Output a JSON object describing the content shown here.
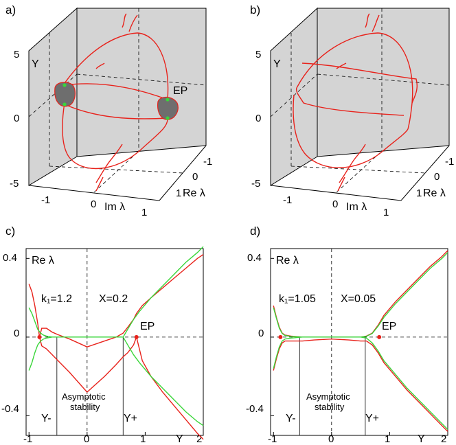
{
  "figure": {
    "panels": [
      {
        "letter": "a)",
        "type": "3d",
        "y_axis_label": "Y",
        "y_ticks": [
          "5",
          "0",
          "-5"
        ],
        "im_axis_label": "Im λ",
        "im_ticks": [
          "-1",
          "0",
          "1"
        ],
        "re_axis_label": "Re λ",
        "re_ticks": [
          "-1",
          "0",
          "1"
        ],
        "annotation": "EP"
      },
      {
        "letter": "b)",
        "type": "3d",
        "y_axis_label": "Y",
        "y_ticks": [
          "5",
          "0",
          "-5"
        ],
        "im_axis_label": "Im λ",
        "im_ticks": [
          "-1",
          "0",
          "1"
        ],
        "re_axis_label": "Re λ",
        "re_ticks": [
          "-1",
          "0",
          "1"
        ]
      }
    ]
  },
  "chart_data": [
    {
      "panel": "c)",
      "type": "line",
      "ylabel": "Re λ",
      "xlabel": "Y",
      "xlim": [
        -1.05,
        2.0
      ],
      "ylim": [
        -0.5,
        0.45
      ],
      "xticks": [
        "-1",
        "0",
        "1",
        "2"
      ],
      "yticks": [
        "0.4",
        "0",
        "-0.4"
      ],
      "params": {
        "k1": "k₁=1.2",
        "X": "X=0.2"
      },
      "ep_label": "EP",
      "ep_points": [
        [
          -0.82,
          0.0
        ],
        [
          0.85,
          0.0
        ]
      ],
      "stability_label": [
        "Asymptotic",
        "stability"
      ],
      "y_minus_label": "Y-",
      "y_plus_label": "Y+",
      "y_minus": -0.52,
      "y_plus": 0.62,
      "series": [
        {
          "name": "upper-red",
          "color": "#e8221b",
          "x": [
            -0.82,
            -0.78,
            -0.7,
            -0.6,
            -0.5,
            -0.3,
            0.0,
            0.3,
            0.5,
            0.62,
            0.7,
            0.8,
            0.85,
            0.95,
            1.1,
            1.3,
            1.5,
            1.7,
            1.9,
            2.0
          ],
          "y": [
            0.0,
            0.045,
            0.045,
            0.025,
            0.012,
            -0.01,
            -0.05,
            -0.02,
            0.0,
            0.02,
            0.05,
            0.09,
            0.12,
            0.16,
            0.2,
            0.25,
            0.3,
            0.35,
            0.4,
            0.42
          ]
        },
        {
          "name": "lower-red",
          "color": "#e8221b",
          "x": [
            -0.82,
            -0.78,
            -0.7,
            -0.6,
            -0.5,
            -0.3,
            0.0,
            0.3,
            0.5,
            0.62,
            0.7,
            0.8,
            0.85,
            0.95,
            1.1,
            1.3,
            1.5,
            1.7,
            1.9,
            2.0
          ],
          "y": [
            0.0,
            -0.045,
            -0.06,
            -0.09,
            -0.12,
            -0.18,
            -0.28,
            -0.2,
            -0.14,
            -0.1,
            -0.08,
            -0.04,
            0.0,
            -0.12,
            -0.2,
            -0.28,
            -0.35,
            -0.42,
            -0.49,
            -0.52
          ]
        },
        {
          "name": "branch-red",
          "color": "#e8221b",
          "x": [
            -0.82,
            -0.85,
            -0.9,
            -0.95,
            -1.0
          ],
          "y": [
            0.0,
            0.07,
            0.16,
            0.23,
            0.27
          ]
        },
        {
          "name": "upper-green",
          "color": "#3ad63a",
          "x": [
            -1.0,
            -0.95,
            -0.9,
            -0.85,
            -0.8,
            -0.75,
            -0.7,
            -0.6,
            -0.5,
            -0.3,
            0.0,
            0.3,
            0.5,
            0.62,
            0.7,
            0.8,
            0.9,
            1.1,
            1.3,
            1.5,
            1.7,
            1.9,
            2.0
          ],
          "y": [
            0.15,
            0.12,
            0.08,
            0.04,
            0.02,
            0.01,
            0.005,
            0.0,
            0.0,
            0.0,
            0.0,
            0.0,
            0.0,
            0.0,
            0.04,
            0.09,
            0.13,
            0.2,
            0.26,
            0.32,
            0.38,
            0.43,
            0.46
          ]
        },
        {
          "name": "lower-green",
          "color": "#3ad63a",
          "x": [
            -1.0,
            -0.95,
            -0.9,
            -0.85,
            -0.8,
            -0.75,
            -0.7,
            -0.6,
            0.5,
            0.62,
            0.7,
            0.8,
            0.9,
            1.1,
            1.3,
            1.5,
            1.7,
            1.9,
            2.0
          ],
          "y": [
            -0.17,
            -0.13,
            -0.08,
            -0.04,
            -0.02,
            -0.01,
            -0.005,
            0.0,
            0.0,
            0.0,
            -0.04,
            -0.09,
            -0.13,
            -0.2,
            -0.26,
            -0.32,
            -0.38,
            -0.43,
            -0.45
          ]
        }
      ]
    },
    {
      "panel": "d)",
      "type": "line",
      "ylabel": "Re λ",
      "xlabel": "Y",
      "xlim": [
        -1.05,
        2.0
      ],
      "ylim": [
        -0.5,
        0.45
      ],
      "xticks": [
        "-1",
        "0",
        "1",
        "2"
      ],
      "yticks": [
        "0.4",
        "0",
        "-0.4"
      ],
      "params": {
        "k1": "k₁=1.05",
        "X": "X=0.05"
      },
      "ep_label": "EP",
      "ep_points": [
        [
          -0.88,
          0.0
        ],
        [
          0.82,
          0.0
        ]
      ],
      "stability_label": [
        "Asymptotic",
        "stability"
      ],
      "y_minus_label": "Y-",
      "y_plus_label": "Y+",
      "y_minus": -0.55,
      "y_plus": 0.58,
      "series": [
        {
          "name": "upper-red",
          "color": "#e8221b",
          "x": [
            -1.0,
            -0.95,
            -0.9,
            -0.85,
            -0.8,
            -0.7,
            -0.5,
            -0.3,
            0.0,
            0.3,
            0.5,
            0.6,
            0.7,
            0.8,
            0.9,
            1.1,
            1.3,
            1.5,
            1.7,
            1.9,
            2.0
          ],
          "y": [
            0.16,
            0.1,
            0.05,
            0.02,
            0.01,
            0.005,
            0.0,
            0.0,
            0.0,
            0.0,
            0.0,
            0.005,
            0.02,
            0.06,
            0.11,
            0.18,
            0.24,
            0.3,
            0.36,
            0.41,
            0.44
          ]
        },
        {
          "name": "lower-red",
          "color": "#e8221b",
          "x": [
            -1.0,
            -0.95,
            -0.9,
            -0.85,
            -0.8,
            -0.7,
            -0.5,
            -0.3,
            0.0,
            0.3,
            0.5,
            0.6,
            0.7,
            0.8,
            0.9,
            1.1,
            1.3,
            1.5,
            1.7,
            1.9,
            2.0
          ],
          "y": [
            -0.17,
            -0.11,
            -0.06,
            -0.03,
            -0.02,
            -0.02,
            -0.02,
            -0.015,
            -0.01,
            -0.015,
            -0.02,
            -0.02,
            -0.04,
            -0.08,
            -0.13,
            -0.2,
            -0.27,
            -0.33,
            -0.39,
            -0.45,
            -0.48
          ]
        },
        {
          "name": "upper-green",
          "color": "#3ad63a",
          "x": [
            -1.0,
            -0.95,
            -0.9,
            -0.85,
            -0.8,
            -0.7,
            -0.5,
            0.0,
            0.5,
            0.6,
            0.7,
            0.8,
            0.9,
            1.1,
            1.3,
            1.5,
            1.7,
            1.9,
            2.0
          ],
          "y": [
            0.15,
            0.095,
            0.045,
            0.018,
            0.008,
            0.003,
            0.0,
            0.0,
            0.0,
            0.004,
            0.018,
            0.055,
            0.1,
            0.17,
            0.23,
            0.29,
            0.35,
            0.4,
            0.43
          ]
        },
        {
          "name": "lower-green",
          "color": "#3ad63a",
          "x": [
            -1.0,
            -0.95,
            -0.9,
            -0.85,
            -0.8,
            -0.7,
            -0.5,
            0.0,
            0.5,
            0.6,
            0.7,
            0.8,
            0.9,
            1.1,
            1.3,
            1.5,
            1.7,
            1.9,
            2.0
          ],
          "y": [
            -0.16,
            -0.1,
            -0.05,
            -0.02,
            -0.01,
            -0.005,
            0.0,
            0.0,
            0.0,
            -0.005,
            -0.03,
            -0.07,
            -0.12,
            -0.19,
            -0.26,
            -0.32,
            -0.38,
            -0.44,
            -0.47
          ]
        }
      ]
    }
  ]
}
